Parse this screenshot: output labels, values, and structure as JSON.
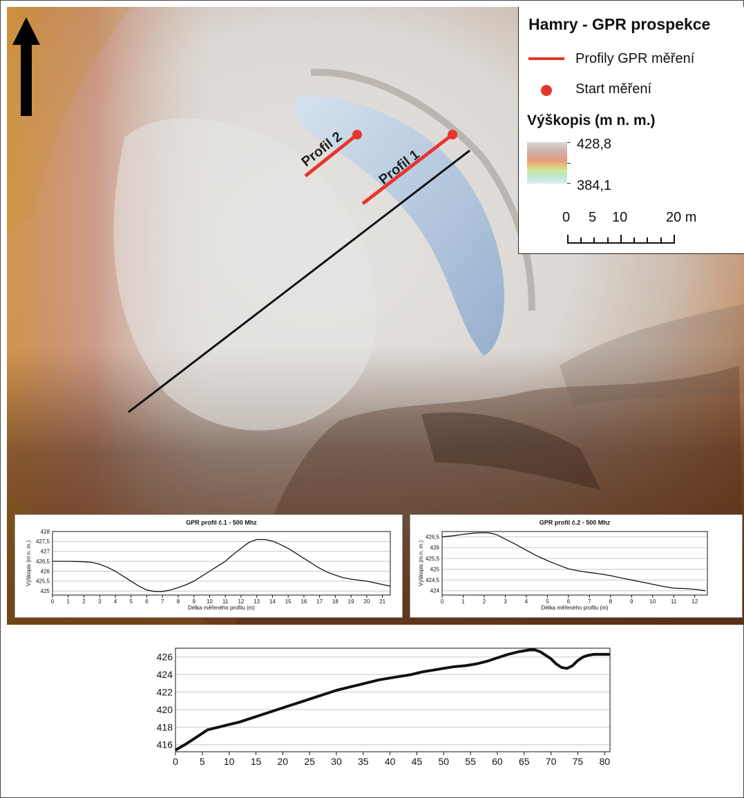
{
  "legend": {
    "title": "Hamry - GPR prospekce",
    "line_label": "Profily GPR měření",
    "line_color": "#e8352b",
    "point_label": "Start měření",
    "elevation_title": "Výškopis (m n. m.)",
    "elevation_max": "428,8",
    "elevation_min": "384,1",
    "scalebar": [
      "0",
      "5",
      "10",
      "20 m"
    ]
  },
  "map": {
    "north_arrow": "north-arrow-icon",
    "profile_labels": [
      "Profil 2",
      "Profil 1"
    ]
  },
  "chart_data": [
    {
      "type": "line",
      "title": "GPR profil č.1 - 500 Mhz",
      "xlabel": "Délka měřeného profilu (m)",
      "ylabel": "Výškopis (m n. m.)",
      "xlim": [
        0,
        21.5
      ],
      "ylim": [
        424.8,
        428
      ],
      "x_ticks": [
        "0",
        "1",
        "2",
        "3",
        "4",
        "5",
        "6",
        "7",
        "8",
        "9",
        "10",
        "11",
        "12",
        "13",
        "14",
        "15",
        "16",
        "17",
        "18",
        "19",
        "20",
        "21"
      ],
      "y_ticks": [
        "425",
        "425,5",
        "426",
        "426,5",
        "427",
        "427,5",
        "428"
      ],
      "grid": true,
      "series": [
        {
          "x": [
            0,
            1,
            2,
            2.5,
            3,
            3.5,
            4,
            4.5,
            5,
            5.5,
            6,
            6.5,
            7,
            7.5,
            8,
            8.5,
            9,
            9.5,
            10,
            10.5,
            11,
            11.5,
            12,
            12.5,
            13,
            13.5,
            14,
            14.5,
            15,
            15.5,
            16,
            16.5,
            17,
            17.5,
            18,
            18.5,
            19,
            19.5,
            20,
            20.5,
            21,
            21.5
          ],
          "y": [
            426.5,
            426.5,
            426.48,
            426.45,
            426.35,
            426.2,
            426.0,
            425.75,
            425.5,
            425.25,
            425.05,
            424.98,
            424.98,
            425.05,
            425.18,
            425.32,
            425.5,
            425.75,
            426.0,
            426.25,
            426.5,
            426.85,
            427.15,
            427.45,
            427.6,
            427.6,
            427.52,
            427.35,
            427.15,
            426.9,
            426.65,
            426.4,
            426.15,
            425.95,
            425.8,
            425.68,
            425.6,
            425.55,
            425.5,
            425.42,
            425.33,
            425.25
          ]
        }
      ]
    },
    {
      "type": "line",
      "title": "GPR profil č.2 - 500 Mhz",
      "xlabel": "Délka měřeného profilu (m)",
      "ylabel": "Výškopis (m n. m.)",
      "xlim": [
        0,
        12.6
      ],
      "ylim": [
        423.8,
        426.75
      ],
      "x_ticks": [
        "0",
        "1",
        "2",
        "3",
        "4",
        "5",
        "6",
        "7",
        "8",
        "9",
        "10",
        "11",
        "12"
      ],
      "y_ticks": [
        "424",
        "424,5",
        "425",
        "425,5",
        "426",
        "426,5"
      ],
      "grid": true,
      "series": [
        {
          "x": [
            0,
            0.5,
            1,
            1.5,
            2,
            2.3,
            2.6,
            3,
            3.5,
            4,
            4.5,
            5,
            5.5,
            6,
            6.5,
            7,
            7.5,
            8,
            8.5,
            9,
            9.5,
            10,
            10.5,
            11,
            11.5,
            12,
            12.5
          ],
          "y": [
            426.5,
            426.55,
            426.62,
            426.68,
            426.7,
            426.68,
            426.6,
            426.4,
            426.15,
            425.88,
            425.62,
            425.4,
            425.2,
            425.02,
            424.92,
            424.85,
            424.78,
            424.7,
            424.6,
            424.5,
            424.4,
            424.3,
            424.2,
            424.12,
            424.1,
            424.07,
            424.0
          ]
        }
      ]
    },
    {
      "type": "line",
      "title": "",
      "xlabel": "",
      "ylabel": "",
      "xlim": [
        0,
        81
      ],
      "ylim": [
        415.2,
        427
      ],
      "x_ticks": [
        "0",
        "5",
        "10",
        "15",
        "20",
        "25",
        "30",
        "35",
        "40",
        "45",
        "50",
        "55",
        "60",
        "65",
        "70",
        "75",
        "80"
      ],
      "y_ticks": [
        "416",
        "418",
        "420",
        "422",
        "424",
        "426"
      ],
      "grid": true,
      "series": [
        {
          "x": [
            0,
            2,
            4,
            6,
            8,
            10,
            12,
            14,
            16,
            18,
            20,
            22,
            24,
            26,
            28,
            30,
            32,
            34,
            36,
            38,
            40,
            42,
            44,
            46,
            48,
            50,
            52,
            54,
            56,
            58,
            60,
            62,
            64,
            66,
            67,
            68,
            69,
            70,
            71,
            72,
            73,
            74,
            75,
            76,
            77,
            78,
            79,
            80,
            81
          ],
          "y": [
            415.4,
            416.1,
            416.9,
            417.7,
            418.0,
            418.3,
            418.6,
            419.0,
            419.4,
            419.8,
            420.2,
            420.6,
            421.0,
            421.4,
            421.8,
            422.2,
            422.5,
            422.8,
            423.1,
            423.4,
            423.6,
            423.8,
            424.0,
            424.3,
            424.5,
            424.7,
            424.9,
            425.0,
            425.2,
            425.5,
            425.9,
            426.3,
            426.6,
            426.8,
            426.8,
            426.6,
            426.2,
            425.8,
            425.2,
            424.8,
            424.7,
            425.0,
            425.6,
            426.0,
            426.2,
            426.3,
            426.3,
            426.3,
            426.3
          ]
        }
      ]
    }
  ]
}
